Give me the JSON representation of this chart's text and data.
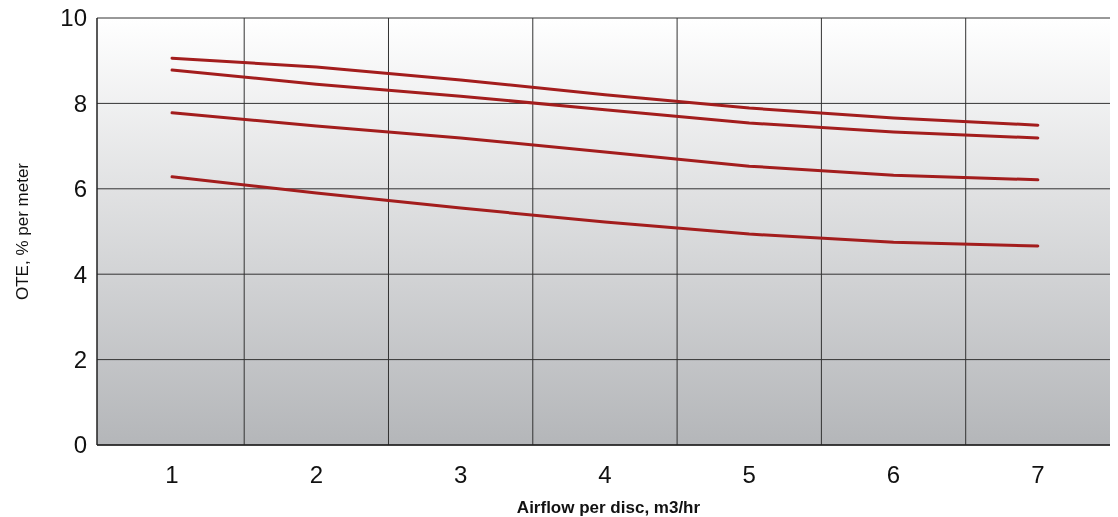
{
  "chart_data": {
    "type": "line",
    "xlabel": "Airflow per disc, m3/hr",
    "ylabel": "OTE, % per meter",
    "x": [
      1,
      2,
      3,
      4,
      5,
      6,
      7
    ],
    "series": [
      {
        "color": "#a31d1d",
        "values": [
          9.06,
          8.85,
          8.55,
          8.2,
          7.89,
          7.66,
          7.49
        ]
      },
      {
        "color": "#a31d1d",
        "values": [
          8.78,
          8.45,
          8.17,
          7.85,
          7.54,
          7.33,
          7.19
        ]
      },
      {
        "color": "#a31d1d",
        "values": [
          7.78,
          7.47,
          7.19,
          6.86,
          6.53,
          6.32,
          6.21
        ]
      },
      {
        "color": "#a31d1d",
        "values": [
          6.28,
          5.9,
          5.55,
          5.22,
          4.94,
          4.75,
          4.66
        ]
      }
    ],
    "xlim": [
      0.48,
      7.5
    ],
    "xticks": [
      1,
      {
        "value": 1.5,
        "label": null
      },
      2,
      {
        "value": 2.5,
        "label": null
      },
      3,
      {
        "value": 3.5,
        "label": null
      },
      4,
      {
        "value": 4.5,
        "label": null
      },
      5,
      {
        "value": 5.5,
        "label": null
      },
      6,
      {
        "value": 6.5,
        "label": null
      },
      7
    ],
    "ylim": [
      0,
      10
    ],
    "yticks": [
      0,
      2,
      4,
      6,
      8,
      10
    ],
    "grid": true,
    "marker": "none",
    "line_style": "solid"
  }
}
